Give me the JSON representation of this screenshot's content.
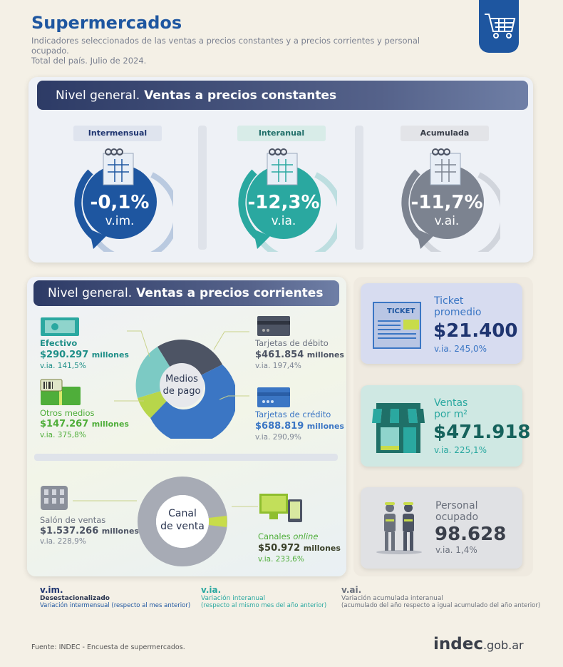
{
  "header": {
    "title": "Supermercados",
    "subtitle_line1": "Indicadores seleccionados de las ventas a precios constantes y a precios corrientes y personal ocupado.",
    "subtitle_line2": "Total del país. Julio de 2024."
  },
  "constantes": {
    "banner_normal": "Nivel general.",
    "banner_bold": "Ventas a precios constantes",
    "items": [
      {
        "tag": "Intermensual",
        "value": "-0,1%",
        "unit": "v.im.",
        "color": "#1e56a0"
      },
      {
        "tag": "Interanual",
        "value": "-12,3%",
        "unit": "v.ia.",
        "color": "#2aa8a0"
      },
      {
        "tag": "Acumulada",
        "value": "-11,7%",
        "unit": "v.ai.",
        "color": "#7c8390"
      }
    ]
  },
  "corrientes": {
    "banner_normal": "Nivel general.",
    "banner_bold": "Ventas a precios corrientes",
    "medios_center_1": "Medios",
    "medios_center_2": "de pago",
    "efectivo": {
      "label": "Efectivo",
      "value": "$290.297",
      "unit": "millones",
      "via": "v.ia. 141,5%"
    },
    "otros": {
      "label": "Otros medios",
      "value": "$147.267",
      "unit": "millones",
      "via": "v.ia. 375,8%"
    },
    "debito": {
      "label": "Tarjetas de débito",
      "value": "$461.854",
      "unit": "millones",
      "via": "v.ia. 197,4%"
    },
    "credito": {
      "label": "Tarjetas de crédito",
      "value": "$688.819",
      "unit": "millones",
      "via": "v.ia. 290,9%"
    },
    "canal_center_1": "Canal",
    "canal_center_2": "de venta",
    "salon": {
      "label": "Salón de ventas",
      "value": "$1.537.266",
      "unit": "millones",
      "via": "v.ia. 228,9%"
    },
    "online": {
      "label_1": "Canales",
      "label_2": "online",
      "value": "$50.972",
      "unit": "millones",
      "via": "v.ia. 233,6%"
    },
    "ticket_word": "TICKET"
  },
  "cards": {
    "ticket": {
      "label_1": "Ticket",
      "label_2": "promedio",
      "value": "$21.400",
      "via": "v.ia. 245,0%"
    },
    "ventas_m2": {
      "label_1": "Ventas",
      "label_2": "por m²",
      "value": "$471.918",
      "via": "v.ia. 225,1%"
    },
    "personal": {
      "label_1": "Personal",
      "label_2": "ocupado",
      "value": "98.628",
      "via": "v.ia. 1,4%"
    }
  },
  "legend": {
    "vim": {
      "head": "v.im.",
      "a": "Desestacionalizado",
      "b": "Variación intermensual (respecto al mes anterior)"
    },
    "via": {
      "head": "v.ia.",
      "a": "Variación interanual",
      "b": "(respecto al mismo mes del año anterior)"
    },
    "vai": {
      "head": "v.ai.",
      "a": "Variación acumulada interanual",
      "b": "(acumulado del año respecto a igual acumulado del año anterior)"
    }
  },
  "footer": {
    "source": "Fuente: INDEC - Encuesta de supermercados.",
    "logo_main": "indec",
    "logo_suffix": ".gob.ar"
  }
}
